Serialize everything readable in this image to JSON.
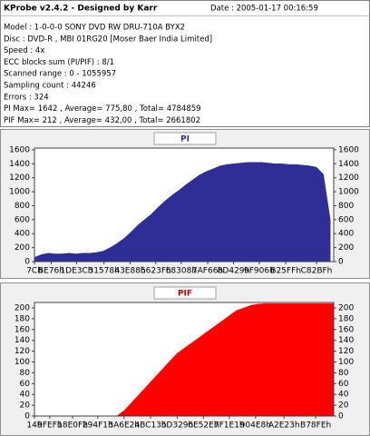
{
  "window": {
    "title": "KProbe v2.4.2 - Designed by Karr",
    "date": "Date : 2005-01-17 00:16:59",
    "lines": [
      "Model : 1-0-0-0 SONY    DVD RW DRU-710A  BYX2",
      "Disc : DVD-R , MBI 01RG20    [Moser Baer India Limited]",
      "Speed : 4x",
      "ECC blocks sum (PI/PIF) : 8/1",
      "Scanned range : 0 - 1055957",
      "Sampling count : 44246",
      "Errors : 324",
      "PI Max= 1642 , Average= 775,80 , Total= 4784859",
      "PIF Max= 212 , Average= 432,00 , Total= 2661802"
    ]
  },
  "chart_data": [
    {
      "type": "area",
      "title": "PI",
      "color": "#2e2e96",
      "title_color": "#2e2e96",
      "x": [
        0,
        20000,
        40000,
        60000,
        80000,
        100000,
        120000,
        140000,
        160000,
        180000,
        200000,
        220000,
        240000,
        260000,
        280000,
        300000,
        320000,
        340000,
        360000,
        380000,
        400000,
        420000,
        440000,
        460000,
        480000,
        500000,
        520000,
        540000,
        560000,
        580000,
        600000,
        620000,
        640000,
        660000,
        680000,
        700000,
        720000,
        740000,
        760000,
        780000,
        800000,
        820000,
        840000,
        860000
      ],
      "values": [
        60,
        100,
        120,
        110,
        110,
        120,
        110,
        120,
        120,
        130,
        150,
        200,
        260,
        330,
        420,
        520,
        600,
        680,
        780,
        870,
        950,
        1020,
        1100,
        1170,
        1240,
        1290,
        1330,
        1370,
        1390,
        1400,
        1410,
        1420,
        1420,
        1420,
        1410,
        1400,
        1400,
        1390,
        1390,
        1380,
        1370,
        1350,
        1250,
        600
      ],
      "xlim": [
        0,
        870000
      ],
      "ylim": [
        0,
        1625
      ],
      "yticks": [
        0,
        200,
        400,
        600,
        800,
        1000,
        1200,
        1400,
        1600
      ],
      "xticks": [
        {
          "value": 124,
          "label": "7Ch"
        },
        {
          "value": 48758,
          "label": "BE76h"
        },
        {
          "value": 122428,
          "label": "1DE3Ch"
        },
        {
          "value": 202104,
          "label": "31578h"
        },
        {
          "value": 278152,
          "label": "43E88h"
        },
        {
          "value": 352831,
          "label": "5623Fh"
        },
        {
          "value": 426760,
          "label": "68308h"
        },
        {
          "value": 503654,
          "label": "7AF66h"
        },
        {
          "value": 578601,
          "label": "8D429h"
        },
        {
          "value": 653574,
          "label": "9F906h"
        },
        {
          "value": 730623,
          "label": "B25FFh"
        },
        {
          "value": 819903,
          "label": "C82BFh"
        }
      ],
      "grid": false
    },
    {
      "type": "area",
      "title": "PIF",
      "color": "#ff0000",
      "title_color": "#cc0000",
      "x": [
        0,
        20000,
        40000,
        60000,
        80000,
        100000,
        120000,
        140000,
        160000,
        180000,
        200000,
        220000,
        240000,
        260000,
        280000,
        300000,
        320000,
        340000,
        360000,
        380000,
        400000,
        420000,
        440000,
        460000,
        480000,
        500000,
        520000,
        540000,
        560000,
        580000,
        600000,
        620000,
        640000,
        660000,
        680000,
        700000,
        720000,
        740000,
        760000,
        780000,
        800000
      ],
      "values": [
        0,
        0,
        0,
        0,
        0,
        0,
        0,
        0,
        0,
        0,
        0,
        0,
        10,
        25,
        40,
        55,
        70,
        85,
        100,
        115,
        125,
        135,
        145,
        155,
        165,
        175,
        185,
        195,
        200,
        205,
        207,
        208,
        208,
        208,
        208,
        208,
        208,
        208,
        208,
        208,
        208
      ],
      "xlim": [
        0,
        800000
      ],
      "ylim": [
        0,
        210
      ],
      "yticks": [
        0,
        20,
        40,
        60,
        80,
        100,
        120,
        140,
        160,
        180,
        200
      ],
      "xticks": [
        {
          "value": 20,
          "label": "14h"
        },
        {
          "value": 40943,
          "label": "9FEFh"
        },
        {
          "value": 101903,
          "label": "18E0Fh"
        },
        {
          "value": 169201,
          "label": "294F1h"
        },
        {
          "value": 239330,
          "label": "3A6E2h"
        },
        {
          "value": 310291,
          "label": "4BC13h"
        },
        {
          "value": 381737,
          "label": "5D329h"
        },
        {
          "value": 451886,
          "label": "6E52Eh"
        },
        {
          "value": 520673,
          "label": "7F1E1h"
        },
        {
          "value": 591080,
          "label": "904E8h"
        },
        {
          "value": 667171,
          "label": "A2E23h"
        },
        {
          "value": 751870,
          "label": "B78FEh"
        }
      ],
      "grid": false
    }
  ]
}
